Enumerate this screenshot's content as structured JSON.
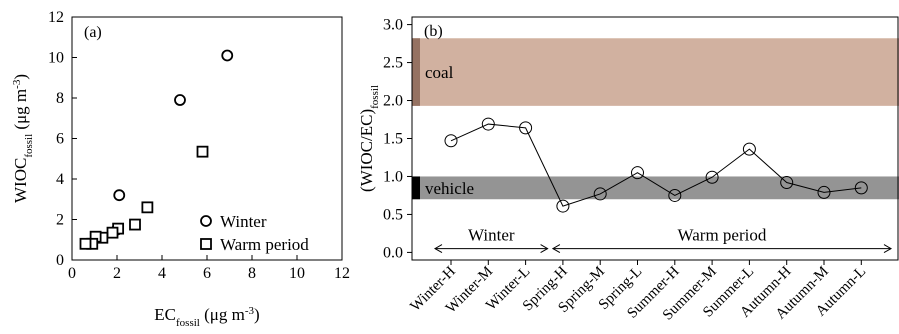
{
  "chart_data": [
    {
      "type": "scatter",
      "panel_label": "(a)",
      "xlabel": {
        "main": "EC",
        "sub": "fossil",
        "unit": " (μg m",
        "sup": "-3",
        "close": ")"
      },
      "ylabel": {
        "main": "WIOC",
        "sub": "fossil",
        "unit": " (μg m",
        "sup": "-3",
        "close": ")"
      },
      "xlim": [
        0,
        12
      ],
      "ylim": [
        0,
        12
      ],
      "xticks": [
        0,
        2,
        4,
        6,
        8,
        10,
        12
      ],
      "yticks": [
        0,
        2,
        4,
        6,
        8,
        10,
        12
      ],
      "legend_position": "bottom-right",
      "series": [
        {
          "name": "Winter",
          "marker": "circle",
          "points": [
            {
              "x": 6.9,
              "y": 10.1
            },
            {
              "x": 4.8,
              "y": 7.9
            },
            {
              "x": 2.1,
              "y": 3.2
            },
            {
              "x": 2.0,
              "y": 1.5
            }
          ]
        },
        {
          "name": "Warm period",
          "marker": "square",
          "points": [
            {
              "x": 5.8,
              "y": 5.35
            },
            {
              "x": 3.35,
              "y": 2.6
            },
            {
              "x": 2.8,
              "y": 1.75
            },
            {
              "x": 2.05,
              "y": 1.55
            },
            {
              "x": 1.8,
              "y": 1.35
            },
            {
              "x": 1.35,
              "y": 1.1
            },
            {
              "x": 1.05,
              "y": 1.15
            },
            {
              "x": 0.9,
              "y": 0.8
            },
            {
              "x": 0.6,
              "y": 0.8
            }
          ]
        }
      ]
    },
    {
      "type": "line",
      "panel_label": "(b)",
      "ylabel": {
        "main": "(WIOC/EC)",
        "sub": "fossil"
      },
      "ylim": [
        -0.1,
        3.1
      ],
      "yticks": [
        "0.0",
        "0.5",
        "1.0",
        "1.5",
        "2.0",
        "2.5",
        "3.0"
      ],
      "categories": [
        "Winter-H",
        "Winter-M",
        "Winter-L",
        "Spring-H",
        "Spring-M",
        "Spring-L",
        "Summer-H",
        "Summer-M",
        "Summer-L",
        "Autumn-H",
        "Autumn-M",
        "Autumn-L"
      ],
      "values": [
        1.47,
        1.69,
        1.64,
        0.61,
        0.77,
        1.05,
        0.75,
        0.99,
        1.36,
        0.92,
        0.79,
        0.85
      ],
      "bands": [
        {
          "label": "coal",
          "range": [
            1.93,
            2.82
          ],
          "color": "#d1b1a0",
          "edge_color": "#957262"
        },
        {
          "label": "vehicle",
          "range": [
            0.7,
            1.0
          ],
          "color": "#949494",
          "edge_color": "#000000"
        }
      ],
      "annotations": [
        {
          "text": "Winter",
          "from_category": 0,
          "to_category": 2,
          "y": 0.05
        },
        {
          "text": "Warm period",
          "from_category": 3,
          "to_category": 11,
          "y": 0.05
        }
      ]
    }
  ]
}
